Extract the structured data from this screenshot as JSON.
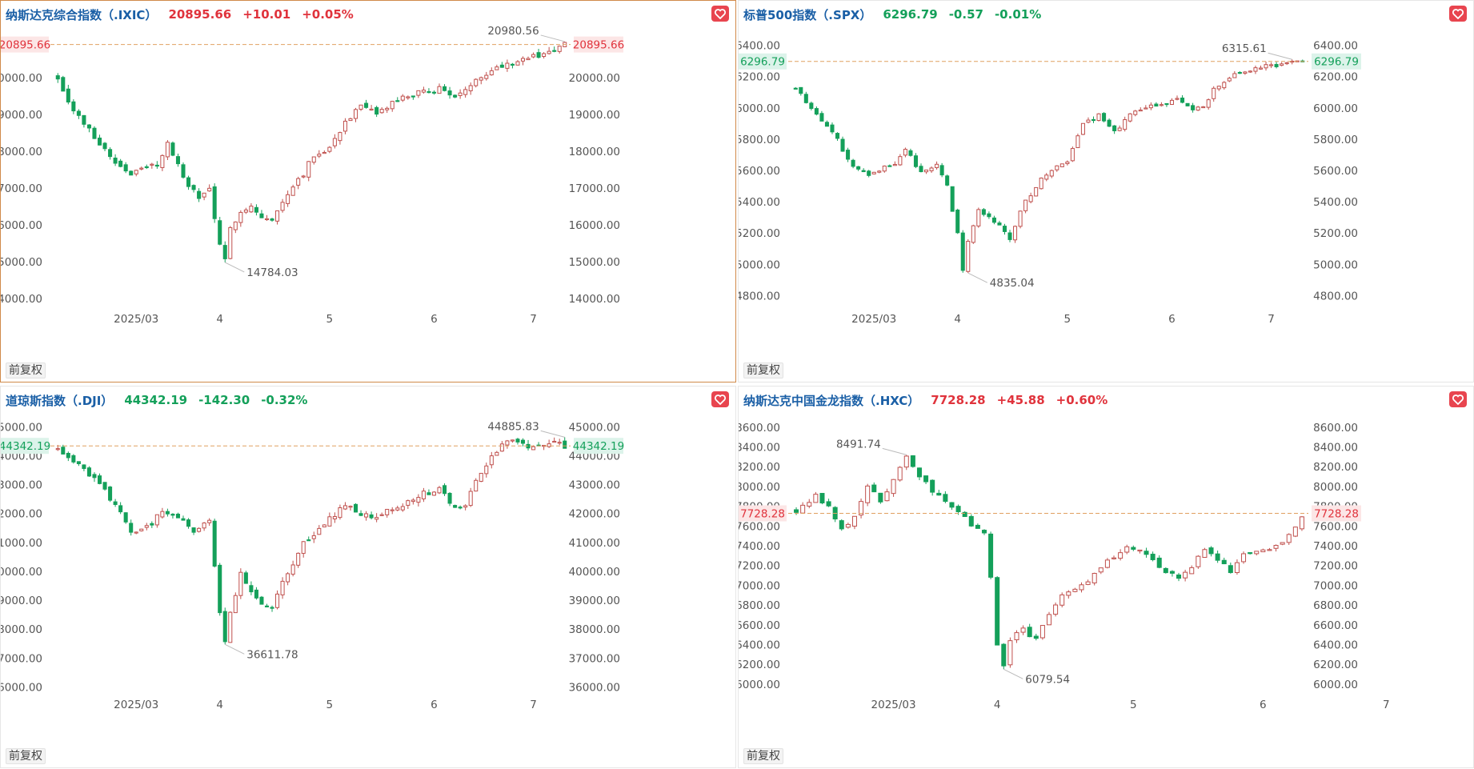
{
  "colors": {
    "up": "#e0333c",
    "down": "#14a05a",
    "candle_up_stroke": "#c0504d",
    "candle_down": "#14a05a",
    "price_line": "#e0a060",
    "active_border": "#d08a4a"
  },
  "common": {
    "adjust_button_label": "前复权",
    "favorite_icon": "heart-icon"
  },
  "chart_data": [
    {
      "type": "candlestick",
      "name": "纳斯达克综合指数（.IXIC）",
      "price": "20895.66",
      "change": "+10.01",
      "change_pct": "+0.05%",
      "direction": "up",
      "current_label": "20895.66",
      "current_value": 20895.66,
      "high_label": "20980.56",
      "low_label": "14784.03",
      "y_ticks": [
        "20000.00",
        "19000.00",
        "18000.00",
        "17000.00",
        "16000.00",
        "15000.00",
        "14000.00"
      ],
      "y_tick_values": [
        20000,
        19000,
        18000,
        17000,
        16000,
        15000,
        14000
      ],
      "ylim": [
        13650,
        21300
      ],
      "x_ticks": [
        "2025/03",
        "4",
        "5",
        "6",
        "7"
      ],
      "x_tick_index": [
        15,
        31,
        52,
        72,
        91
      ],
      "anchors": [
        [
          0,
          20000
        ],
        [
          3,
          19100
        ],
        [
          7,
          18400
        ],
        [
          11,
          17700
        ],
        [
          14,
          17400
        ],
        [
          19,
          17650
        ],
        [
          21,
          18200
        ],
        [
          24,
          17300
        ],
        [
          27,
          16700
        ],
        [
          29,
          17000
        ],
        [
          31,
          15400
        ],
        [
          32,
          15000
        ],
        [
          33,
          15900
        ],
        [
          35,
          16400
        ],
        [
          37,
          16500
        ],
        [
          39,
          16200
        ],
        [
          41,
          16100
        ],
        [
          43,
          16600
        ],
        [
          45,
          17100
        ],
        [
          47,
          17400
        ],
        [
          49,
          17900
        ],
        [
          52,
          18100
        ],
        [
          55,
          18800
        ],
        [
          58,
          19200
        ],
        [
          61,
          19000
        ],
        [
          64,
          19300
        ],
        [
          67,
          19500
        ],
        [
          70,
          19600
        ],
        [
          73,
          19700
        ],
        [
          76,
          19500
        ],
        [
          78,
          19600
        ],
        [
          80,
          20000
        ],
        [
          83,
          20200
        ],
        [
          86,
          20400
        ],
        [
          89,
          20500
        ],
        [
          92,
          20600
        ],
        [
          95,
          20750
        ],
        [
          97,
          20900
        ]
      ],
      "n": 98,
      "amp": 130,
      "seed": 7
    },
    {
      "type": "candlestick",
      "name": "标普500指数（.SPX）",
      "price": "6296.79",
      "change": "-0.57",
      "change_pct": "-0.01%",
      "direction": "down",
      "current_label": "6296.79",
      "current_value": 6296.79,
      "high_label": "6315.61",
      "low_label": "4835.04",
      "y_ticks": [
        "6400.00",
        "6200.00",
        "6000.00",
        "5800.00",
        "5600.00",
        "5400.00",
        "5200.00",
        "5000.00",
        "4800.00"
      ],
      "y_tick_values": [
        6400,
        6200,
        6000,
        5800,
        5600,
        5400,
        5200,
        5000,
        4800
      ],
      "ylim": [
        4700,
        6500
      ],
      "x_ticks": [
        "2025/03",
        "4",
        "5",
        "6",
        "7"
      ],
      "x_tick_index": [
        15,
        31,
        52,
        72,
        91
      ],
      "anchors": [
        [
          0,
          6130
        ],
        [
          3,
          6000
        ],
        [
          7,
          5850
        ],
        [
          11,
          5620
        ],
        [
          14,
          5580
        ],
        [
          19,
          5650
        ],
        [
          21,
          5740
        ],
        [
          24,
          5580
        ],
        [
          27,
          5640
        ],
        [
          29,
          5500
        ],
        [
          31,
          5200
        ],
        [
          32,
          4950
        ],
        [
          33,
          5150
        ],
        [
          35,
          5350
        ],
        [
          37,
          5300
        ],
        [
          39,
          5250
        ],
        [
          41,
          5150
        ],
        [
          43,
          5350
        ],
        [
          45,
          5450
        ],
        [
          47,
          5550
        ],
        [
          49,
          5600
        ],
        [
          52,
          5650
        ],
        [
          55,
          5900
        ],
        [
          58,
          5950
        ],
        [
          61,
          5850
        ],
        [
          64,
          5950
        ],
        [
          67,
          6000
        ],
        [
          70,
          6020
        ],
        [
          73,
          6050
        ],
        [
          76,
          5990
        ],
        [
          78,
          6000
        ],
        [
          80,
          6120
        ],
        [
          83,
          6200
        ],
        [
          86,
          6230
        ],
        [
          89,
          6260
        ],
        [
          92,
          6275
        ],
        [
          95,
          6290
        ],
        [
          97,
          6296
        ]
      ],
      "n": 98,
      "amp": 22,
      "seed": 11
    },
    {
      "type": "candlestick",
      "name": "道琼斯指数（.DJI）",
      "price": "44342.19",
      "change": "-142.30",
      "change_pct": "-0.32%",
      "direction": "down",
      "current_label": "44342.19",
      "current_value": 44342.19,
      "high_label": "44885.83",
      "low_label": "36611.78",
      "y_ticks": [
        "45000.00",
        "44000.00",
        "43000.00",
        "42000.00",
        "41000.00",
        "40000.00",
        "39000.00",
        "38000.00",
        "37000.00",
        "36000.00"
      ],
      "y_tick_values": [
        45000,
        44000,
        43000,
        42000,
        41000,
        40000,
        39000,
        38000,
        37000,
        36000
      ],
      "ylim": [
        35650,
        45400
      ],
      "x_ticks": [
        "2025/03",
        "4",
        "5",
        "6",
        "7"
      ],
      "x_tick_index": [
        15,
        31,
        52,
        72,
        91
      ],
      "anchors": [
        [
          0,
          44300
        ],
        [
          4,
          43700
        ],
        [
          8,
          43000
        ],
        [
          11,
          42300
        ],
        [
          14,
          41300
        ],
        [
          17,
          41500
        ],
        [
          20,
          42100
        ],
        [
          23,
          41800
        ],
        [
          26,
          41400
        ],
        [
          29,
          41800
        ],
        [
          31,
          38500
        ],
        [
          32,
          37500
        ],
        [
          33,
          38500
        ],
        [
          35,
          40000
        ],
        [
          37,
          39200
        ],
        [
          39,
          38800
        ],
        [
          41,
          38800
        ],
        [
          43,
          39700
        ],
        [
          45,
          40300
        ],
        [
          47,
          41000
        ],
        [
          49,
          41300
        ],
        [
          52,
          41800
        ],
        [
          55,
          42300
        ],
        [
          58,
          42000
        ],
        [
          61,
          41800
        ],
        [
          64,
          42200
        ],
        [
          67,
          42400
        ],
        [
          70,
          42700
        ],
        [
          73,
          42800
        ],
        [
          76,
          42200
        ],
        [
          78,
          42300
        ],
        [
          80,
          43100
        ],
        [
          83,
          44000
        ],
        [
          86,
          44500
        ],
        [
          89,
          44400
        ],
        [
          92,
          44300
        ],
        [
          95,
          44400
        ],
        [
          97,
          44342
        ]
      ],
      "n": 98,
      "amp": 170,
      "seed": 19
    },
    {
      "type": "candlestick",
      "name": "纳斯达克中国金龙指数（.HXC）",
      "price": "7728.28",
      "change": "+45.88",
      "change_pct": "+0.60%",
      "direction": "up",
      "current_label": "7728.28",
      "current_value": 7728.28,
      "high_label": "8491.74",
      "low_label": "6079.54",
      "y_ticks": [
        "8600.00",
        "8400.00",
        "8200.00",
        "8000.00",
        "7800.00",
        "7600.00",
        "7400.00",
        "7200.00",
        "7000.00",
        "6800.00",
        "6600.00",
        "6400.00",
        "6200.00",
        "6000.00"
      ],
      "y_tick_values": [
        8600,
        8400,
        8200,
        8000,
        7800,
        7600,
        7400,
        7200,
        7000,
        6800,
        6600,
        6400,
        6200,
        6000
      ],
      "ylim": [
        5870,
        8720
      ],
      "x_ticks": [
        "2025/03",
        "4",
        "5",
        "6",
        "7"
      ],
      "x_tick_index": [
        15,
        31,
        52,
        72,
        91
      ],
      "anchors": [
        [
          0,
          7750
        ],
        [
          3,
          7900
        ],
        [
          5,
          7800
        ],
        [
          7,
          7550
        ],
        [
          9,
          7700
        ],
        [
          11,
          8000
        ],
        [
          13,
          7850
        ],
        [
          15,
          8050
        ],
        [
          17,
          8300
        ],
        [
          19,
          8100
        ],
        [
          21,
          7950
        ],
        [
          23,
          7850
        ],
        [
          25,
          7750
        ],
        [
          27,
          7600
        ],
        [
          29,
          7550
        ],
        [
          30,
          7100
        ],
        [
          31,
          6400
        ],
        [
          32,
          6200
        ],
        [
          33,
          6450
        ],
        [
          35,
          6550
        ],
        [
          37,
          6450
        ],
        [
          39,
          6700
        ],
        [
          41,
          6900
        ],
        [
          43,
          6950
        ],
        [
          45,
          7050
        ],
        [
          47,
          7200
        ],
        [
          49,
          7300
        ],
        [
          51,
          7400
        ],
        [
          53,
          7350
        ],
        [
          55,
          7250
        ],
        [
          57,
          7150
        ],
        [
          59,
          7050
        ],
        [
          61,
          7200
        ],
        [
          63,
          7350
        ],
        [
          65,
          7250
        ],
        [
          67,
          7150
        ],
        [
          69,
          7300
        ],
        [
          71,
          7350
        ],
        [
          73,
          7380
        ],
        [
          75,
          7450
        ],
        [
          77,
          7600
        ],
        [
          78,
          7700
        ]
      ],
      "n": 79,
      "amp": 40,
      "seed": 29
    }
  ]
}
